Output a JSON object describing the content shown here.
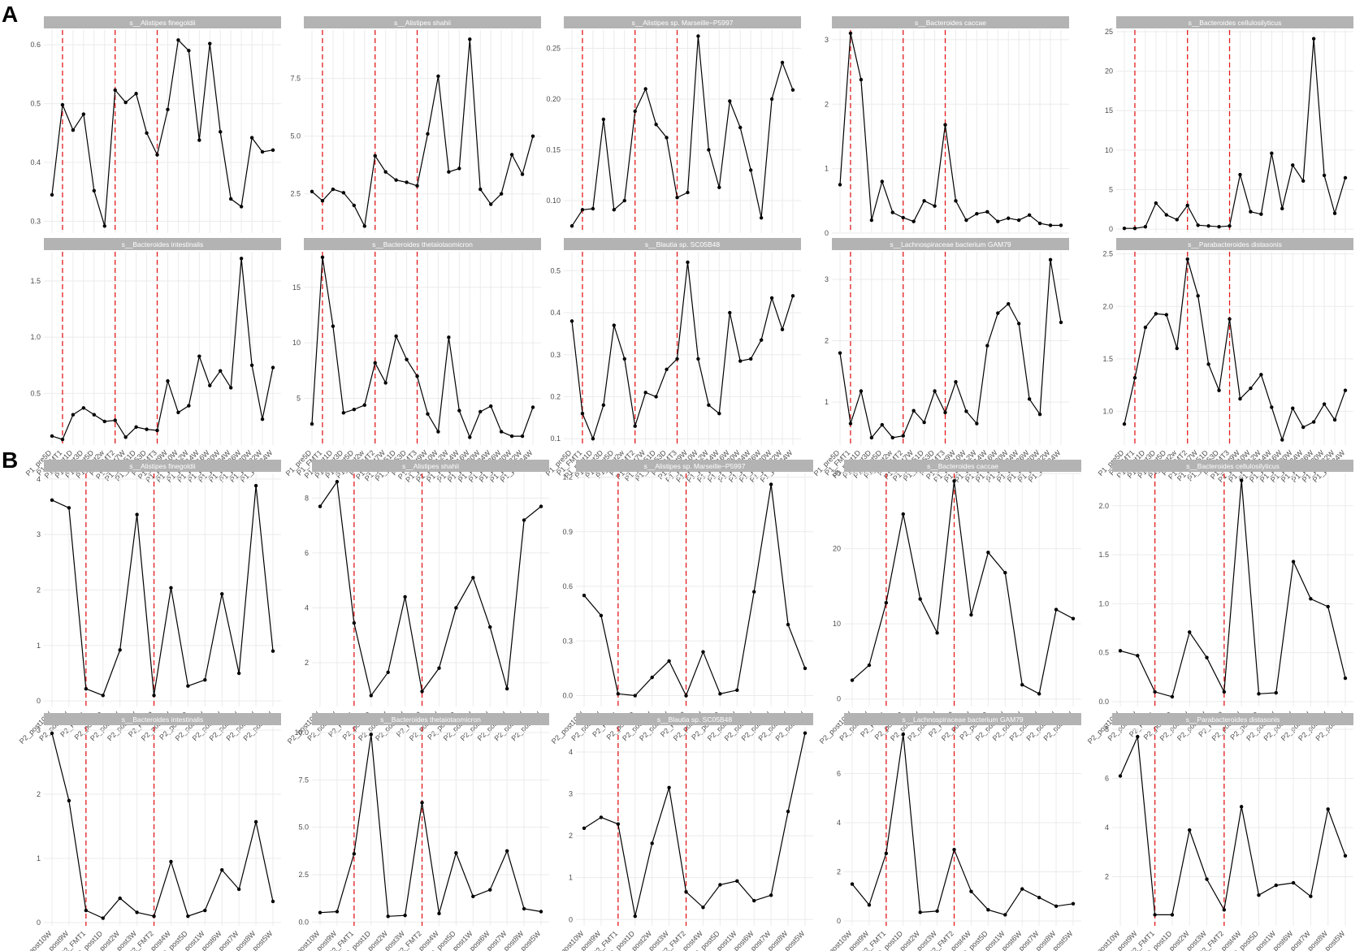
{
  "figure": {
    "label_a": "A",
    "label_b": "B"
  },
  "colors": {
    "strip_bg": "#b3b3b3",
    "strip_text": "#ffffff",
    "grid": "#ebebeb",
    "line": "#000000",
    "vline": "#e41a1c",
    "axis_text": "#4d4d4d"
  },
  "chart_data": [
    {
      "id": "A",
      "type": "line",
      "categories": [
        "P1_pre5D",
        "P1_FMT1",
        "P1_post1D",
        "P1_post3D",
        "P1_post5D",
        "P1_post2w",
        "P1_FMT2",
        "P1_post7W",
        "P1_post51D",
        "P1_post53D",
        "P1_FMT3",
        "P1_post9W",
        "P1_post10W",
        "P1_post12W",
        "P1_post14W",
        "P1_post16W",
        "P1_post20W",
        "P1_post24W",
        "P1_post26W",
        "P1_post30W",
        "P1_post32W",
        "P1_post34W"
      ],
      "vlines": [
        "P1_FMT1",
        "P1_FMT2",
        "P1_FMT3"
      ],
      "facets": [
        {
          "title": "s__Alistipes finegoldii",
          "ylim": [
            0.28,
            0.625
          ],
          "yticks": [
            0.3,
            0.4,
            0.5,
            0.6
          ],
          "values": [
            0.345,
            0.498,
            0.455,
            0.482,
            0.352,
            0.292,
            0.523,
            0.502,
            0.517,
            0.45,
            0.413,
            0.49,
            0.608,
            0.59,
            0.438,
            0.602,
            0.452,
            0.338,
            0.325,
            0.442,
            0.418,
            0.421
          ]
        },
        {
          "title": "s__Alistipes shahii",
          "ylim": [
            0.8,
            9.6
          ],
          "yticks": [
            2.5,
            5.0,
            7.5
          ],
          "yfmt": 1,
          "values": [
            2.6,
            2.2,
            2.7,
            2.55,
            2.0,
            1.1,
            4.15,
            3.45,
            3.1,
            3.0,
            2.85,
            5.1,
            7.6,
            3.45,
            3.6,
            9.2,
            2.7,
            2.05,
            2.5,
            4.2,
            3.35,
            5.0
          ]
        },
        {
          "title": "s__Alistipes sp. Marseille−P5997",
          "ylim": [
            0.068,
            0.268
          ],
          "yticks": [
            0.1,
            0.15,
            0.2,
            0.25
          ],
          "yfmt": 2,
          "values": [
            0.075,
            0.091,
            0.092,
            0.18,
            0.091,
            0.1,
            0.188,
            0.21,
            0.175,
            0.162,
            0.103,
            0.108,
            0.262,
            0.15,
            0.113,
            0.198,
            0.172,
            0.13,
            0.083,
            0.2,
            0.236,
            0.209
          ]
        },
        {
          "title": "s__Bacteroides caccae",
          "ylim": [
            0,
            3.15
          ],
          "yticks": [
            0,
            1,
            2,
            3
          ],
          "values": [
            0.75,
            3.1,
            2.38,
            0.2,
            0.8,
            0.32,
            0.24,
            0.18,
            0.5,
            0.42,
            1.68,
            0.5,
            0.2,
            0.3,
            0.33,
            0.18,
            0.23,
            0.2,
            0.28,
            0.15,
            0.12,
            0.12
          ]
        },
        {
          "title": "s__Bacteroides cellulosilyticus",
          "ylim": [
            -0.5,
            25.2
          ],
          "yticks": [
            0,
            5,
            10,
            15,
            20,
            25
          ],
          "values": [
            0.1,
            0.1,
            0.3,
            3.3,
            1.8,
            1.2,
            3.0,
            0.5,
            0.4,
            0.3,
            0.4,
            6.9,
            2.2,
            1.9,
            9.6,
            2.6,
            8.1,
            6.1,
            24.1,
            6.8,
            2.0,
            6.5
          ]
        },
        {
          "title": "s__Bacteroides intestinalis",
          "ylim": [
            0.04,
            1.76
          ],
          "yticks": [
            0.5,
            1.0,
            1.5
          ],
          "yfmt": 1,
          "values": [
            0.12,
            0.09,
            0.31,
            0.37,
            0.31,
            0.25,
            0.26,
            0.11,
            0.2,
            0.18,
            0.17,
            0.61,
            0.33,
            0.39,
            0.83,
            0.57,
            0.7,
            0.55,
            1.7,
            0.75,
            0.27,
            0.73
          ]
        },
        {
          "title": "s__Bacteroides thetaiotaomicron",
          "ylim": [
            0.8,
            18.2
          ],
          "yticks": [
            5,
            10,
            15
          ],
          "values": [
            2.7,
            17.7,
            11.5,
            3.7,
            4.0,
            4.4,
            8.2,
            6.4,
            10.6,
            8.5,
            7.0,
            3.6,
            2.0,
            10.5,
            3.9,
            1.5,
            3.8,
            4.3,
            2.0,
            1.6,
            1.6,
            4.2
          ]
        },
        {
          "title": "s__Blautia sp. SC05B48",
          "ylim": [
            0.085,
            0.545
          ],
          "yticks": [
            0.1,
            0.2,
            0.3,
            0.4,
            0.5
          ],
          "yfmt": 1,
          "values": [
            0.38,
            0.16,
            0.1,
            0.18,
            0.37,
            0.29,
            0.13,
            0.21,
            0.2,
            0.265,
            0.29,
            0.52,
            0.29,
            0.18,
            0.16,
            0.4,
            0.285,
            0.29,
            0.335,
            0.435,
            0.36,
            0.44
          ]
        },
        {
          "title": "s__Lachnospiraceae bacterium GAM79",
          "ylim": [
            0.3,
            3.45
          ],
          "yticks": [
            1,
            2,
            3
          ],
          "values": [
            1.8,
            0.65,
            1.18,
            0.42,
            0.63,
            0.42,
            0.45,
            0.86,
            0.67,
            1.18,
            0.83,
            1.33,
            0.85,
            0.65,
            1.92,
            2.45,
            2.6,
            2.28,
            1.05,
            0.8,
            3.32,
            2.3
          ]
        },
        {
          "title": "s__Parabacteroides distasonis",
          "ylim": [
            0.68,
            2.52
          ],
          "yticks": [
            1.0,
            1.5,
            2.0,
            2.5
          ],
          "yfmt": 1,
          "values": [
            0.88,
            1.32,
            1.8,
            1.93,
            1.92,
            1.6,
            2.45,
            2.1,
            1.45,
            1.2,
            1.88,
            1.12,
            1.22,
            1.35,
            1.04,
            0.73,
            1.03,
            0.85,
            0.9,
            1.07,
            0.92,
            1.2
          ]
        }
      ]
    },
    {
      "id": "B",
      "type": "line",
      "categories": [
        "P2_post10W",
        "P2_post9W",
        "P2_FMT1",
        "P2_post1D",
        "P2_post2W",
        "P2_post3W",
        "P2_FMT2",
        "P2_post4W",
        "P2_post5D",
        "P2_post1W",
        "P2_post6W",
        "P2_post7W",
        "P2_post8W",
        "P2_post5W"
      ],
      "vlines": [
        "P2_FMT1",
        "P2_FMT2"
      ],
      "facets": [
        {
          "title": "s__Alistipes finegoldii",
          "ylim": [
            -0.1,
            4.1
          ],
          "yticks": [
            0,
            1,
            2,
            3,
            4
          ],
          "values": [
            3.62,
            3.48,
            0.22,
            0.1,
            0.92,
            3.36,
            0.1,
            2.04,
            0.27,
            0.38,
            1.93,
            0.5,
            3.88,
            0.9
          ]
        },
        {
          "title": "s__Alistipes shahii",
          "ylim": [
            0.4,
            8.9
          ],
          "yticks": [
            2,
            4,
            6,
            8
          ],
          "values": [
            7.7,
            8.6,
            3.45,
            0.8,
            1.65,
            4.4,
            0.95,
            1.8,
            4.0,
            5.1,
            3.3,
            1.05,
            7.2,
            7.7
          ]
        },
        {
          "title": "s__Alistipes sp. Marseille−P5997",
          "ylim": [
            -0.06,
            1.22
          ],
          "yticks": [
            0.0,
            0.3,
            0.6,
            0.9,
            1.2
          ],
          "yfmt": 1,
          "values": [
            0.55,
            0.44,
            0.01,
            0.0,
            0.1,
            0.19,
            0.0,
            0.24,
            0.01,
            0.03,
            0.57,
            1.16,
            0.39,
            0.15
          ]
        },
        {
          "title": "s__Bacteroides caccae",
          "ylim": [
            -1,
            30
          ],
          "yticks": [
            0,
            10,
            20,
            30
          ],
          "values": [
            2.5,
            4.5,
            12.8,
            24.6,
            13.3,
            8.8,
            29.0,
            11.2,
            19.5,
            16.8,
            1.9,
            0.7,
            11.9,
            10.7
          ]
        },
        {
          "title": "s__Bacteroides cellulosilyticus",
          "ylim": [
            -0.05,
            2.33
          ],
          "yticks": [
            0.0,
            0.5,
            1.0,
            1.5,
            2.0
          ],
          "yfmt": 1,
          "values": [
            0.52,
            0.47,
            0.1,
            0.05,
            0.71,
            0.45,
            0.1,
            2.26,
            0.08,
            0.09,
            1.43,
            1.05,
            0.97,
            0.24
          ]
        },
        {
          "title": "s__Bacteroides intestinalis",
          "ylim": [
            -0.05,
            3.05
          ],
          "yticks": [
            0,
            1,
            2,
            3
          ],
          "values": [
            2.95,
            1.9,
            0.19,
            0.07,
            0.38,
            0.16,
            0.1,
            0.95,
            0.1,
            0.19,
            0.82,
            0.52,
            1.57,
            0.33
          ]
        },
        {
          "title": "s__Bacteroides thetaiotaomicron",
          "ylim": [
            -0.2,
            10.3
          ],
          "yticks": [
            0.0,
            2.5,
            5.0,
            7.5,
            10.0
          ],
          "yfmt": 1,
          "values": [
            0.5,
            0.55,
            3.6,
            9.9,
            0.3,
            0.35,
            6.3,
            0.45,
            3.65,
            1.35,
            1.7,
            3.75,
            0.7,
            0.55
          ]
        },
        {
          "title": "s__Blautia sp. SC05B48",
          "ylim": [
            -0.15,
            4.6
          ],
          "yticks": [
            0,
            1,
            2,
            3,
            4
          ],
          "values": [
            2.18,
            2.44,
            2.28,
            0.08,
            1.82,
            3.15,
            0.66,
            0.29,
            0.83,
            0.92,
            0.45,
            0.58,
            2.58,
            4.45
          ]
        },
        {
          "title": "s__Lachnospiraceae bacterium GAM79",
          "ylim": [
            -0.2,
            7.9
          ],
          "yticks": [
            0,
            2,
            4,
            6
          ],
          "values": [
            1.5,
            0.65,
            2.75,
            7.6,
            0.35,
            0.4,
            2.9,
            1.2,
            0.45,
            0.25,
            1.3,
            0.95,
            0.6,
            0.7
          ]
        },
        {
          "title": "s__Parabacteroides distasonis",
          "ylim": [
            0.0,
            8.1
          ],
          "yticks": [
            2,
            4,
            6,
            8
          ],
          "values": [
            6.1,
            7.7,
            0.45,
            0.45,
            3.9,
            1.9,
            0.65,
            4.85,
            1.25,
            1.65,
            1.75,
            1.2,
            4.75,
            2.85
          ]
        }
      ]
    }
  ]
}
